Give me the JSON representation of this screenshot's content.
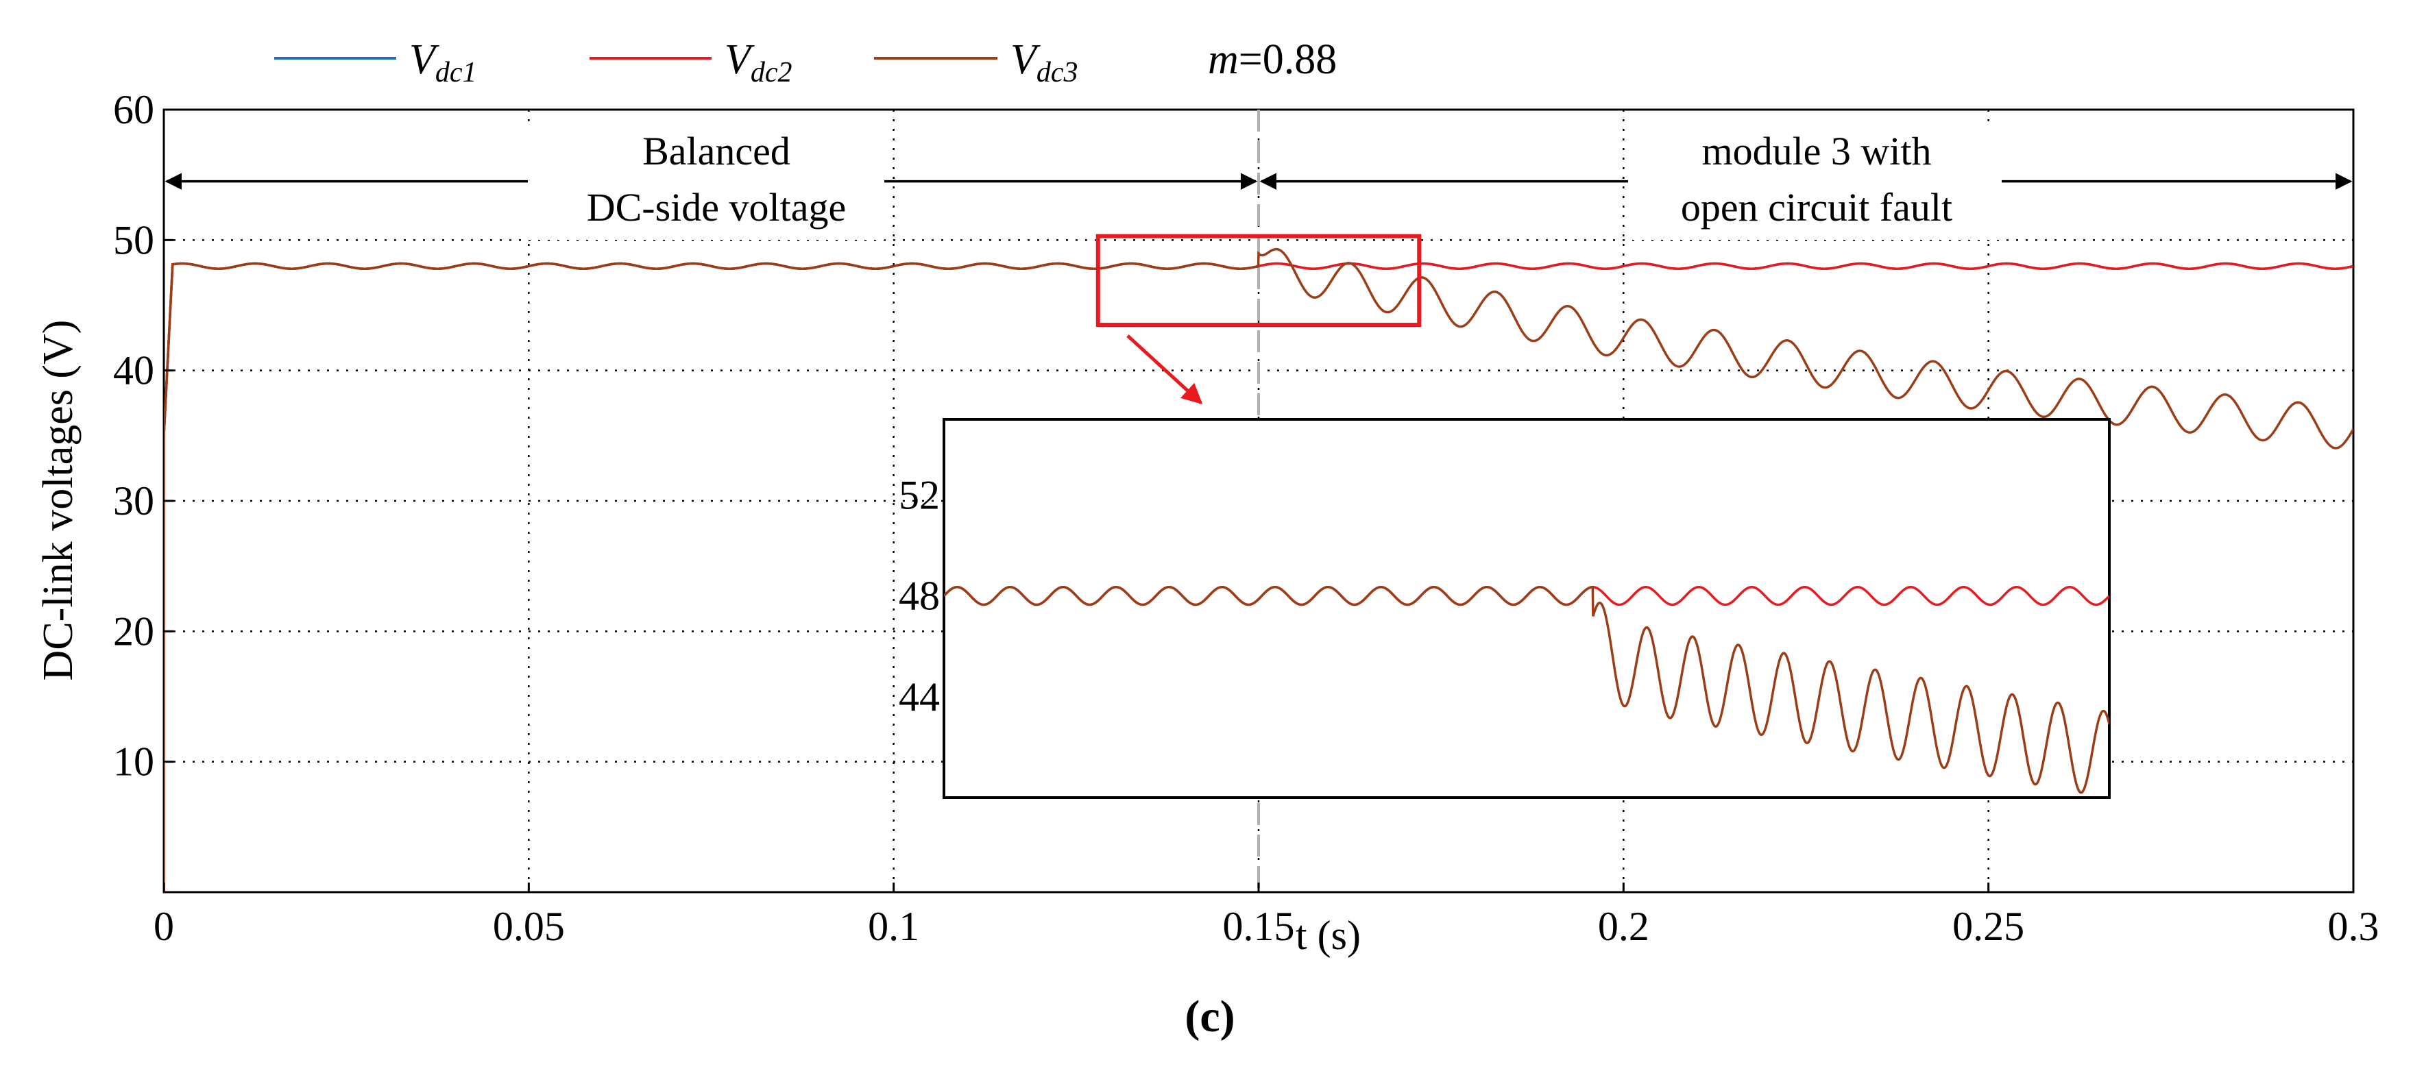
{
  "chart_data": {
    "type": "line",
    "title": "",
    "xlabel": "t (s)",
    "ylabel": "DC-link voltages (V)",
    "xlim": [
      0,
      0.3
    ],
    "ylim": [
      0,
      60
    ],
    "x_ticks": [
      "0",
      "0.05",
      "0.1",
      "0.15",
      "0.2",
      "0.25",
      "0.3"
    ],
    "y_ticks": [
      "10",
      "20",
      "30",
      "40",
      "50",
      "60"
    ],
    "grid": true,
    "legend_position": "top",
    "legend": {
      "entries": [
        {
          "name": "V",
          "sub": "dc1"
        },
        {
          "name": "V",
          "sub": "dc2"
        },
        {
          "name": "V",
          "sub": "dc3"
        }
      ],
      "modulation": {
        "symbol": "m",
        "value": "=0.88"
      }
    },
    "series": [
      {
        "name": "Vdc1",
        "color": "#1f6fbf",
        "steady_value": 48,
        "ripple": 0.2
      },
      {
        "name": "Vdc2",
        "color": "#e8191f",
        "steady_value": 48,
        "ripple": 0.2
      },
      {
        "name": "Vdc3",
        "color": "#9b3d16",
        "steady_value": 48,
        "ripple": 0.2,
        "fault_time": 0.15,
        "after_fault_points": [
          [
            0.15,
            48
          ],
          [
            0.2,
            42.5
          ],
          [
            0.25,
            38.5
          ],
          [
            0.3,
            35.5
          ]
        ],
        "oscillation_amplitude": 1.6
      }
    ],
    "fault_marker_x": 0.15,
    "annotations": {
      "balanced_line1": "Balanced",
      "balanced_line2": "DC-side voltage",
      "fault_line1": "module 3 with",
      "fault_line2": "open circuit fault",
      "arrow_y": 54.5
    },
    "zoom_source": {
      "x_range": [
        0.128,
        0.172
      ],
      "y_range": [
        43.5,
        50.3
      ]
    },
    "inset": {
      "x_range": [
        0.128,
        0.172
      ],
      "y_range": [
        40,
        55
      ],
      "y_ticks": [
        "44",
        "48",
        "52"
      ],
      "y_tick_values": [
        44,
        48,
        52
      ]
    },
    "panel_label": "(c)"
  },
  "colors": {
    "zoom_box": "#e8191f",
    "fault_line": "#b0b0b0",
    "grid": "#000000"
  }
}
